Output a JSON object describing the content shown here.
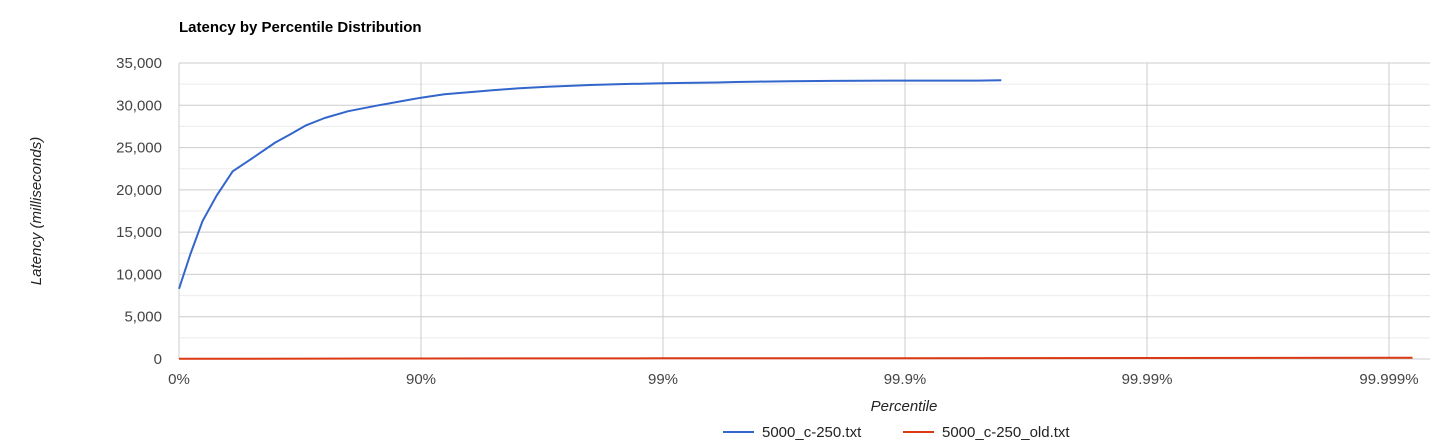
{
  "chart_data": {
    "type": "line",
    "title": "Latency by Percentile Distribution",
    "xlabel": "Percentile",
    "ylabel": "Latency (milliseconds)",
    "x_scale": "log-percentile",
    "x_ticks": [
      "0%",
      "90%",
      "99%",
      "99.9%",
      "99.99%",
      "99.999%"
    ],
    "y_ticks": [
      "0",
      "5,000",
      "10,000",
      "15,000",
      "20,000",
      "25,000",
      "30,000",
      "35,000"
    ],
    "ylim": [
      0,
      35000
    ],
    "grid": true,
    "legend_position": "bottom",
    "series": [
      {
        "name": "5000_c-250.txt",
        "color": "#3366cc",
        "x": [
          0,
          10,
          20,
          30,
          40,
          50,
          60,
          65,
          70,
          75,
          80,
          85,
          88,
          90,
          92,
          94,
          95,
          96,
          97,
          98,
          98.5,
          99,
          99.2,
          99.4,
          99.5,
          99.6,
          99.7,
          99.8,
          99.85,
          99.9,
          99.92,
          99.94,
          99.95,
          99.96
        ],
        "values": [
          8300,
          12300,
          16300,
          19300,
          22200,
          23700,
          25600,
          26500,
          27600,
          28500,
          29300,
          30000,
          30500,
          30900,
          31300,
          31600,
          31800,
          32000,
          32200,
          32400,
          32500,
          32600,
          32650,
          32700,
          32750,
          32800,
          32850,
          32880,
          32900,
          32920,
          32920,
          32920,
          32920,
          32950
        ]
      },
      {
        "name": "5000_c-250_old.txt",
        "color": "#dc3912",
        "x": [
          0,
          50,
          90,
          99,
          99.9,
          99.99,
          99.999,
          99.9992
        ],
        "values": [
          20,
          40,
          60,
          80,
          100,
          120,
          140,
          140
        ]
      }
    ]
  }
}
